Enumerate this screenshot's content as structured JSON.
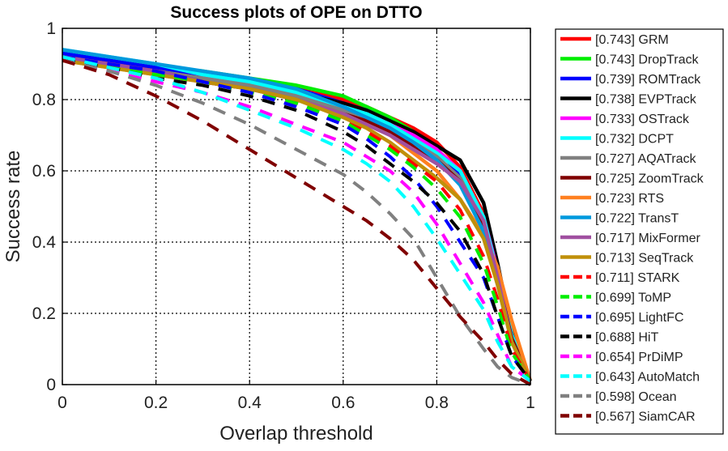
{
  "chart_data": {
    "type": "line",
    "title": "Success plots of OPE on DTTO",
    "xlabel": "Overlap threshold",
    "ylabel": "Success rate",
    "xlim": [
      0,
      1
    ],
    "ylim": [
      0,
      1
    ],
    "xticks": [
      0,
      0.2,
      0.4,
      0.6,
      0.8,
      1
    ],
    "yticks": [
      0,
      0.2,
      0.4,
      0.6,
      0.8,
      1
    ],
    "xtick_labels": [
      "0",
      "0.2",
      "0.4",
      "0.6",
      "0.8",
      "1"
    ],
    "ytick_labels": [
      "0",
      "0.2",
      "0.4",
      "0.6",
      "0.8",
      "1"
    ],
    "grid": true,
    "legend_position": "outside-right",
    "x": [
      0,
      0.1,
      0.2,
      0.3,
      0.4,
      0.5,
      0.6,
      0.65,
      0.7,
      0.75,
      0.8,
      0.85,
      0.9,
      0.93,
      0.96,
      1.0
    ],
    "series": [
      {
        "name": "GRM",
        "score": "0.743",
        "legend": "[0.743] GRM",
        "color": "#ff0000",
        "dash": false,
        "values": [
          0.93,
          0.91,
          0.89,
          0.87,
          0.85,
          0.83,
          0.8,
          0.78,
          0.75,
          0.72,
          0.68,
          0.61,
          0.48,
          0.33,
          0.15,
          0.01
        ]
      },
      {
        "name": "DropTrack",
        "score": "0.743",
        "legend": "[0.743] DropTrack",
        "color": "#00ee00",
        "dash": false,
        "values": [
          0.92,
          0.91,
          0.89,
          0.88,
          0.86,
          0.84,
          0.81,
          0.78,
          0.75,
          0.71,
          0.66,
          0.59,
          0.46,
          0.32,
          0.15,
          0.01
        ]
      },
      {
        "name": "ROMTrack",
        "score": "0.739",
        "legend": "[0.739] ROMTrack",
        "color": "#0000ff",
        "dash": false,
        "values": [
          0.93,
          0.91,
          0.89,
          0.87,
          0.85,
          0.83,
          0.79,
          0.77,
          0.74,
          0.7,
          0.66,
          0.59,
          0.46,
          0.31,
          0.14,
          0.01
        ]
      },
      {
        "name": "EVPTrack",
        "score": "0.738",
        "legend": "[0.738] EVPTrack",
        "color": "#000000",
        "dash": false,
        "values": [
          0.92,
          0.9,
          0.88,
          0.86,
          0.84,
          0.82,
          0.79,
          0.77,
          0.74,
          0.71,
          0.67,
          0.63,
          0.51,
          0.34,
          0.15,
          0.01
        ]
      },
      {
        "name": "OSTrack",
        "score": "0.733",
        "legend": "[0.733] OSTrack",
        "color": "#ff00ff",
        "dash": false,
        "values": [
          0.92,
          0.9,
          0.88,
          0.86,
          0.84,
          0.81,
          0.78,
          0.76,
          0.73,
          0.7,
          0.66,
          0.6,
          0.47,
          0.32,
          0.14,
          0.01
        ]
      },
      {
        "name": "DCPT",
        "score": "0.732",
        "legend": "[0.732] DCPT",
        "color": "#00ffff",
        "dash": false,
        "values": [
          0.94,
          0.92,
          0.9,
          0.87,
          0.85,
          0.82,
          0.78,
          0.76,
          0.73,
          0.69,
          0.65,
          0.6,
          0.47,
          0.31,
          0.14,
          0.01
        ]
      },
      {
        "name": "AQATrack",
        "score": "0.727",
        "legend": "[0.727] AQATrack",
        "color": "#808080",
        "dash": false,
        "values": [
          0.92,
          0.9,
          0.88,
          0.86,
          0.84,
          0.81,
          0.77,
          0.75,
          0.72,
          0.68,
          0.64,
          0.58,
          0.45,
          0.3,
          0.13,
          0.01
        ]
      },
      {
        "name": "ZoomTrack",
        "score": "0.725",
        "legend": "[0.725] ZoomTrack",
        "color": "#800000",
        "dash": false,
        "values": [
          0.92,
          0.9,
          0.88,
          0.85,
          0.83,
          0.8,
          0.76,
          0.74,
          0.71,
          0.67,
          0.63,
          0.57,
          0.44,
          0.3,
          0.13,
          0.01
        ]
      },
      {
        "name": "RTS",
        "score": "0.723",
        "legend": "[0.723] RTS",
        "color": "#ff8020",
        "dash": false,
        "values": [
          0.91,
          0.89,
          0.87,
          0.85,
          0.83,
          0.8,
          0.76,
          0.73,
          0.7,
          0.65,
          0.6,
          0.52,
          0.42,
          0.33,
          0.18,
          0.01
        ]
      },
      {
        "name": "TransT",
        "score": "0.722",
        "legend": "[0.722] TransT",
        "color": "#0099dd",
        "dash": false,
        "values": [
          0.94,
          0.92,
          0.9,
          0.88,
          0.86,
          0.83,
          0.78,
          0.75,
          0.72,
          0.68,
          0.63,
          0.56,
          0.43,
          0.28,
          0.12,
          0.01
        ]
      },
      {
        "name": "MixFormer",
        "score": "0.717",
        "legend": "[0.717] MixFormer",
        "color": "#a050a0",
        "dash": false,
        "values": [
          0.92,
          0.9,
          0.88,
          0.85,
          0.83,
          0.8,
          0.76,
          0.73,
          0.7,
          0.66,
          0.62,
          0.57,
          0.46,
          0.3,
          0.12,
          0.01
        ]
      },
      {
        "name": "SeqTrack",
        "score": "0.713",
        "legend": "[0.713] SeqTrack",
        "color": "#c0900a",
        "dash": false,
        "values": [
          0.91,
          0.89,
          0.87,
          0.85,
          0.83,
          0.8,
          0.75,
          0.72,
          0.68,
          0.63,
          0.58,
          0.52,
          0.41,
          0.28,
          0.12,
          0.01
        ]
      },
      {
        "name": "STARK",
        "score": "0.711",
        "legend": "[0.711] STARK",
        "color": "#ff0000",
        "dash": true,
        "values": [
          0.91,
          0.89,
          0.87,
          0.85,
          0.82,
          0.79,
          0.74,
          0.71,
          0.67,
          0.62,
          0.57,
          0.49,
          0.36,
          0.24,
          0.1,
          0.01
        ]
      },
      {
        "name": "ToMP",
        "score": "0.699",
        "legend": "[0.699] ToMP",
        "color": "#00ee00",
        "dash": true,
        "values": [
          0.91,
          0.89,
          0.87,
          0.85,
          0.82,
          0.79,
          0.74,
          0.7,
          0.66,
          0.61,
          0.55,
          0.47,
          0.34,
          0.22,
          0.09,
          0.01
        ]
      },
      {
        "name": "LightFC",
        "score": "0.695",
        "legend": "[0.695] LightFC",
        "color": "#0000ff",
        "dash": true,
        "values": [
          0.92,
          0.9,
          0.88,
          0.85,
          0.82,
          0.78,
          0.73,
          0.69,
          0.64,
          0.58,
          0.5,
          0.4,
          0.3,
          0.19,
          0.08,
          0.01
        ]
      },
      {
        "name": "HiT",
        "score": "0.688",
        "legend": "[0.688] HiT",
        "color": "#000000",
        "dash": true,
        "values": [
          0.91,
          0.89,
          0.86,
          0.84,
          0.81,
          0.77,
          0.71,
          0.67,
          0.62,
          0.57,
          0.51,
          0.43,
          0.31,
          0.19,
          0.08,
          0.01
        ]
      },
      {
        "name": "PrDiMP",
        "score": "0.654",
        "legend": "[0.654] PrDiMP",
        "color": "#ff00ff",
        "dash": true,
        "values": [
          0.91,
          0.88,
          0.85,
          0.82,
          0.78,
          0.73,
          0.68,
          0.64,
          0.6,
          0.54,
          0.45,
          0.34,
          0.23,
          0.14,
          0.05,
          0.01
        ]
      },
      {
        "name": "AutoMatch",
        "score": "0.643",
        "legend": "[0.643] AutoMatch",
        "color": "#00ffff",
        "dash": true,
        "values": [
          0.92,
          0.89,
          0.86,
          0.82,
          0.77,
          0.72,
          0.66,
          0.62,
          0.57,
          0.5,
          0.41,
          0.31,
          0.21,
          0.12,
          0.05,
          0.01
        ]
      },
      {
        "name": "Ocean",
        "score": "0.598",
        "legend": "[0.598] Ocean",
        "color": "#808080",
        "dash": true,
        "values": [
          0.91,
          0.88,
          0.84,
          0.79,
          0.73,
          0.66,
          0.59,
          0.54,
          0.48,
          0.41,
          0.3,
          0.19,
          0.1,
          0.05,
          0.02,
          0.0
        ]
      },
      {
        "name": "SiamCAR",
        "score": "0.567",
        "legend": "[0.567] SiamCAR",
        "color": "#800000",
        "dash": true,
        "values": [
          0.91,
          0.87,
          0.81,
          0.74,
          0.66,
          0.58,
          0.5,
          0.46,
          0.41,
          0.35,
          0.27,
          0.19,
          0.12,
          0.07,
          0.03,
          0.0
        ]
      }
    ]
  }
}
